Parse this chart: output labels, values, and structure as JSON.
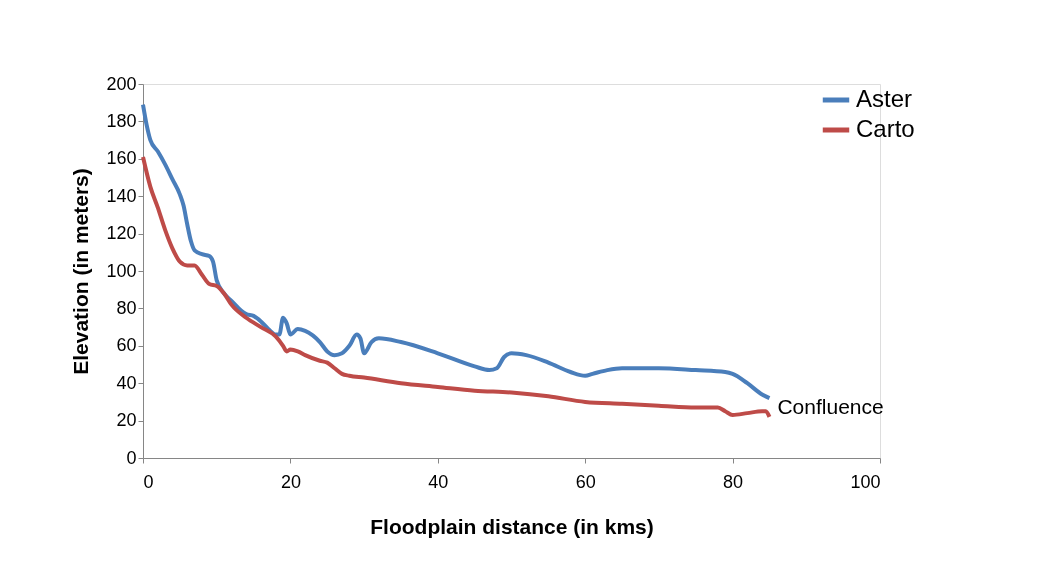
{
  "chart_data": {
    "type": "line",
    "xlabel": "Floodplain distance  (in kms)",
    "ylabel": "Elevation (in meters)",
    "xlim": [
      0,
      100
    ],
    "xticks": [
      0,
      20,
      40,
      60,
      80,
      100
    ],
    "ylim": [
      0,
      200
    ],
    "yticks": [
      0,
      20,
      40,
      60,
      80,
      100,
      120,
      140,
      160,
      180,
      200
    ],
    "grid": false,
    "legend": "right",
    "marker": "none",
    "line_style": "solid",
    "annotations": [
      {
        "text": "Confluence",
        "x": 85,
        "y": 27
      }
    ],
    "series": [
      {
        "name": "Aster",
        "color": "#4a7ebb",
        "x": [
          0,
          0.5,
          1,
          2,
          3,
          4,
          5,
          5.5,
          6,
          6.5,
          7,
          8,
          9,
          9.5,
          10,
          11,
          12,
          13,
          14,
          15,
          16,
          17,
          18,
          18.5,
          19,
          19.5,
          20,
          21,
          22,
          24,
          25,
          26,
          27,
          28,
          29,
          29.5,
          30,
          31,
          32,
          35,
          40,
          45,
          47,
          48,
          49,
          50,
          52,
          55,
          58,
          60,
          61,
          63,
          65,
          70,
          75,
          79,
          80,
          82,
          84,
          85
        ],
        "values": [
          189,
          178,
          170,
          164,
          157,
          149,
          141,
          135,
          125,
          116,
          111,
          109,
          108,
          105,
          95,
          88,
          84,
          80,
          77,
          76,
          73,
          69,
          66,
          66,
          75,
          72,
          66,
          69,
          68,
          62,
          57,
          55,
          56,
          60,
          66,
          64,
          56,
          62,
          64,
          62,
          56,
          49,
          47,
          48,
          54,
          56,
          55,
          51,
          46,
          44,
          45,
          47,
          48,
          48,
          47,
          46,
          45,
          40,
          34,
          32
        ]
      },
      {
        "name": "Carto",
        "color": "#be4b48",
        "x": [
          0,
          1,
          2,
          3,
          4,
          5,
          6,
          7,
          8,
          9,
          10,
          11,
          12,
          14,
          16,
          18,
          19,
          19.5,
          20,
          21,
          22,
          24,
          25,
          26,
          27,
          28,
          30,
          35,
          40,
          45,
          50,
          55,
          60,
          65,
          70,
          75,
          78,
          79,
          80,
          82,
          84,
          84.5,
          85
        ],
        "values": [
          161,
          145,
          134,
          122,
          112,
          105,
          103,
          103,
          98,
          93,
          92,
          88,
          82,
          75,
          70,
          65,
          60,
          57,
          58,
          57,
          55,
          52,
          51,
          48,
          45,
          44,
          43,
          40,
          38,
          36,
          35,
          33,
          30,
          29,
          28,
          27,
          27,
          25,
          23,
          24,
          25,
          25,
          22
        ]
      }
    ]
  }
}
